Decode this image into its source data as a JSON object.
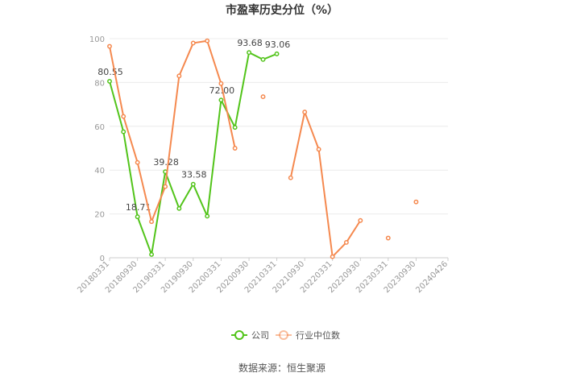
{
  "chart_data": {
    "type": "line",
    "title": "市盈率历史分位（%）",
    "ylim": [
      0,
      100
    ],
    "y_ticks": [
      "0",
      "20",
      "40",
      "60",
      "80",
      "100"
    ],
    "categories": [
      "20180331",
      "20180930",
      "20190331",
      "20190930",
      "20200331",
      "20200930",
      "20210331",
      "20210930",
      "20220331",
      "20220930",
      "20230331",
      "20230930",
      "20240426"
    ],
    "series": [
      {
        "name": "公司",
        "color": "#52c41a",
        "points": [
          {
            "x": "20180331",
            "y": 80.55,
            "label": "80.55"
          },
          {
            "x": "20180630",
            "y": 57.5
          },
          {
            "x": "20180930",
            "y": 18.71,
            "label": "18.71"
          },
          {
            "x": "20181231",
            "y": 1.5
          },
          {
            "x": "20190331",
            "y": 39.28,
            "label": "39.28"
          },
          {
            "x": "20190630",
            "y": 22.5
          },
          {
            "x": "20190930",
            "y": 33.58,
            "label": "33.58"
          },
          {
            "x": "20191231",
            "y": 19.0
          },
          {
            "x": "20200331",
            "y": 72.0,
            "label": "72.00"
          },
          {
            "x": "20200630",
            "y": 59.5
          },
          {
            "x": "20200930",
            "y": 93.68,
            "label": "93.68"
          },
          {
            "x": "20201231",
            "y": 90.5
          },
          {
            "x": "20210331",
            "y": 93.06,
            "label": "93.06"
          }
        ]
      },
      {
        "name": "行业中位数",
        "color": "#f5894f",
        "points": [
          {
            "x": "20180331",
            "y": 96.5
          },
          {
            "x": "20180630",
            "y": 64.5
          },
          {
            "x": "20180930",
            "y": 43.5
          },
          {
            "x": "20181231",
            "y": 16.5
          },
          {
            "x": "20190331",
            "y": 32.5
          },
          {
            "x": "20190630",
            "y": 83.0
          },
          {
            "x": "20190930",
            "y": 98.0
          },
          {
            "x": "20191231",
            "y": 99.0
          },
          {
            "x": "20200331",
            "y": 79.5
          },
          {
            "x": "20200630",
            "y": 50.0
          },
          {
            "x": "20200930",
            "y": null
          },
          {
            "x": "20201231",
            "y": 73.5
          },
          {
            "x": "20210331",
            "y": null
          },
          {
            "x": "20210630",
            "y": 36.5
          },
          {
            "x": "20210930",
            "y": 66.5
          },
          {
            "x": "20211231",
            "y": 49.5
          },
          {
            "x": "20220331",
            "y": 0.5
          },
          {
            "x": "20220630",
            "y": 7.0
          },
          {
            "x": "20220930",
            "y": 17.0
          },
          {
            "x": "20221231",
            "y": null
          },
          {
            "x": "20230331",
            "y": 9.0
          },
          {
            "x": "20230630",
            "y": null
          },
          {
            "x": "20230930",
            "y": 25.5
          }
        ]
      }
    ],
    "legend_position": "bottom-center",
    "grid": true
  },
  "source": "数据来源：恒生聚源"
}
